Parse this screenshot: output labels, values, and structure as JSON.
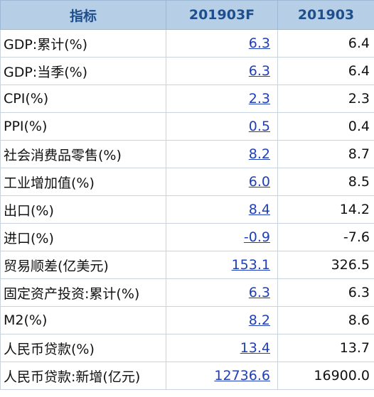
{
  "table": {
    "headers": [
      "指标",
      "201903F",
      "201903"
    ],
    "rows": [
      {
        "label": "GDP:累计(%)",
        "forecast": "6.3",
        "actual": "6.4"
      },
      {
        "label": "GDP:当季(%)",
        "forecast": "6.3",
        "actual": "6.4"
      },
      {
        "label": "CPI(%)",
        "forecast": "2.3",
        "actual": "2.3"
      },
      {
        "label": "PPI(%)",
        "forecast": "0.5",
        "actual": "0.4"
      },
      {
        "label": "社会消费品零售(%)",
        "forecast": "8.2",
        "actual": "8.7"
      },
      {
        "label": "工业增加值(%)",
        "forecast": "6.0",
        "actual": "8.5"
      },
      {
        "label": "出口(%)",
        "forecast": "8.4",
        "actual": "14.2"
      },
      {
        "label": "进口(%)",
        "forecast": "-0.9",
        "actual": "-7.6"
      },
      {
        "label": "贸易顺差(亿美元)",
        "forecast": "153.1",
        "actual": "326.5"
      },
      {
        "label": "固定资产投资:累计(%)",
        "forecast": "6.3",
        "actual": "6.3"
      },
      {
        "label": "M2(%)",
        "forecast": "8.2",
        "actual": "8.6"
      },
      {
        "label": "人民币贷款(%)",
        "forecast": "13.4",
        "actual": "13.7"
      },
      {
        "label": "人民币贷款:新增(亿元)",
        "forecast": "12736.6",
        "actual": "16900.0"
      }
    ]
  }
}
